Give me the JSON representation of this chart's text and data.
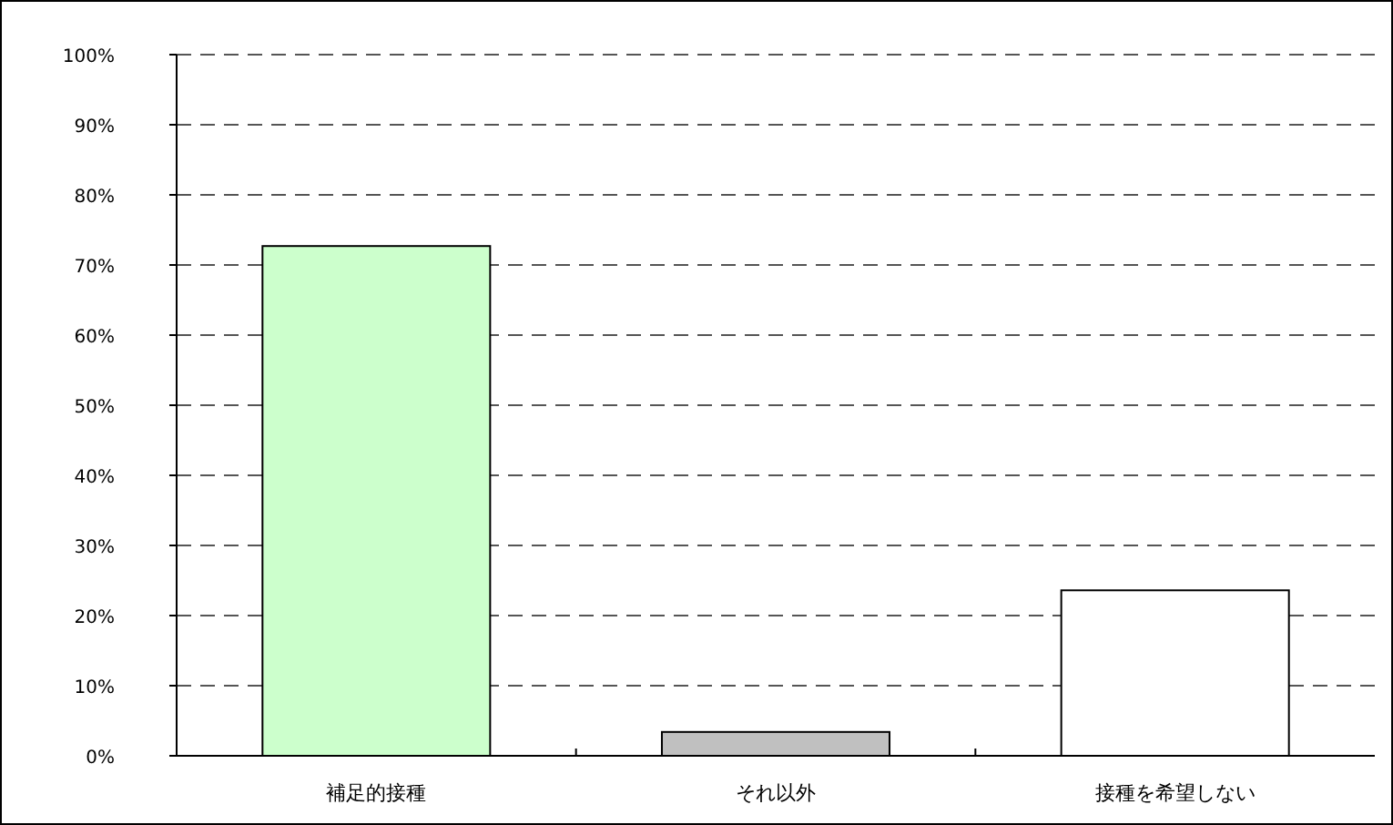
{
  "chart_data": {
    "type": "bar",
    "categories": [
      "補足的接種",
      "それ以外",
      "接種を希望しない"
    ],
    "values": [
      72.7,
      3.4,
      23.6
    ],
    "colors": [
      "#ccffcc",
      "#c0c0c0",
      "#ffffff"
    ],
    "ylim": [
      0,
      100
    ],
    "yticks": [
      {
        "value": 0,
        "label": "0%"
      },
      {
        "value": 10,
        "label": "10%"
      },
      {
        "value": 20,
        "label": "20%"
      },
      {
        "value": 30,
        "label": "30%"
      },
      {
        "value": 40,
        "label": "40%"
      },
      {
        "value": 50,
        "label": "50%"
      },
      {
        "value": 60,
        "label": "60%"
      },
      {
        "value": 70,
        "label": "70%"
      },
      {
        "value": 80,
        "label": "80%"
      },
      {
        "value": 90,
        "label": "90%"
      },
      {
        "value": 100,
        "label": "100%"
      }
    ],
    "grid": "y"
  }
}
